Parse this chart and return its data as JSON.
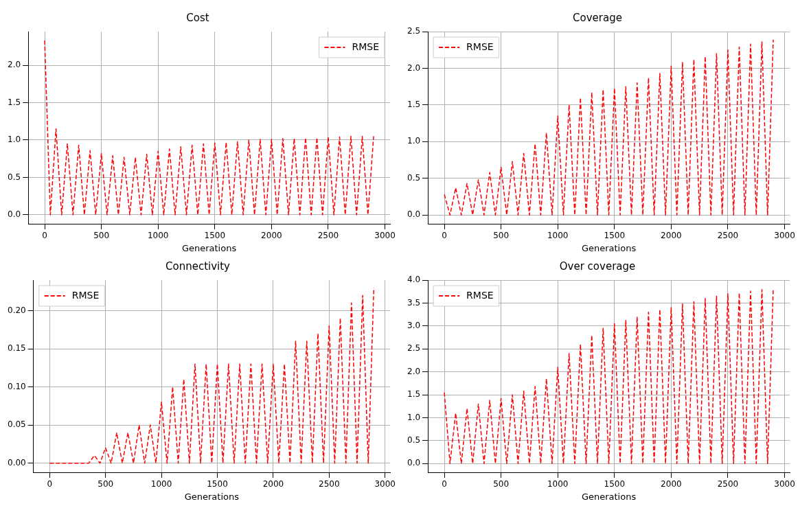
{
  "chart_data": [
    {
      "type": "line",
      "title": "Cost",
      "xlabel": "Generations",
      "legend": "top right",
      "grid": true,
      "marker": "none",
      "line_style": "dashed",
      "x": [
        0,
        50,
        100,
        150,
        200,
        250,
        300,
        350,
        400,
        450,
        500,
        550,
        600,
        650,
        700,
        750,
        800,
        850,
        900,
        950,
        1000,
        1050,
        1100,
        1150,
        1200,
        1250,
        1300,
        1350,
        1400,
        1450,
        1500,
        1550,
        1600,
        1650,
        1700,
        1750,
        1800,
        1850,
        1900,
        1950,
        2000,
        2050,
        2100,
        2150,
        2200,
        2250,
        2300,
        2350,
        2400,
        2450,
        2500,
        2550,
        2600,
        2650,
        2700,
        2750,
        2800,
        2850,
        2900
      ],
      "xlim": [
        -145,
        3045
      ],
      "xticks": [
        0,
        500,
        1000,
        1500,
        2000,
        2500,
        3000
      ],
      "ylim": [
        -0.12,
        2.45
      ],
      "yticks": [
        {
          "value": 0,
          "label": "0.0"
        },
        {
          "value": 0.5,
          "label": "0.5"
        },
        {
          "value": 1,
          "label": "1.0"
        },
        {
          "value": 1.5,
          "label": "1.5"
        },
        {
          "value": 2,
          "label": "2.0"
        }
      ],
      "series": [
        {
          "name": "RMSE",
          "color": "#ff0000",
          "values": [
            2.33,
            0,
            1.15,
            0,
            0.95,
            0,
            0.93,
            0,
            0.86,
            0,
            0.82,
            0,
            0.79,
            0,
            0.77,
            0,
            0.77,
            0,
            0.81,
            0,
            0.85,
            0,
            0.88,
            0,
            0.91,
            0,
            0.93,
            0,
            0.95,
            0,
            0.96,
            0,
            0.97,
            0,
            0.98,
            0,
            1.0,
            0,
            1.01,
            0,
            1.01,
            0,
            1.02,
            0,
            1.02,
            0,
            1.03,
            0,
            1.03,
            0,
            1.04,
            0,
            1.04,
            0,
            1.05,
            0,
            1.05,
            0,
            1.05
          ]
        }
      ]
    },
    {
      "type": "line",
      "title": "Coverage",
      "xlabel": "Generations",
      "legend": "top left",
      "grid": true,
      "marker": "none",
      "line_style": "dashed",
      "x": [
        0,
        50,
        100,
        150,
        200,
        250,
        300,
        350,
        400,
        450,
        500,
        550,
        600,
        650,
        700,
        750,
        800,
        850,
        900,
        950,
        1000,
        1050,
        1100,
        1150,
        1200,
        1250,
        1300,
        1350,
        1400,
        1450,
        1500,
        1550,
        1600,
        1650,
        1700,
        1750,
        1800,
        1850,
        1900,
        1950,
        2000,
        2050,
        2100,
        2150,
        2200,
        2250,
        2300,
        2350,
        2400,
        2450,
        2500,
        2550,
        2600,
        2650,
        2700,
        2750,
        2800,
        2850,
        2900
      ],
      "xlim": [
        -145,
        3045
      ],
      "xticks": [
        0,
        500,
        1000,
        1500,
        2000,
        2500,
        3000
      ],
      "ylim": [
        -0.12,
        2.5
      ],
      "yticks": [
        {
          "value": 0,
          "label": "0.0"
        },
        {
          "value": 0.5,
          "label": "0.5"
        },
        {
          "value": 1,
          "label": "1.0"
        },
        {
          "value": 1.5,
          "label": "1.5"
        },
        {
          "value": 2,
          "label": "2.0"
        },
        {
          "value": 2.5,
          "label": "2.5"
        }
      ],
      "series": [
        {
          "name": "RMSE",
          "color": "#ff0000",
          "values": [
            0.28,
            0,
            0.37,
            0,
            0.43,
            0,
            0.48,
            0,
            0.58,
            0,
            0.65,
            0,
            0.73,
            0,
            0.84,
            0,
            0.97,
            0,
            1.12,
            0,
            1.35,
            0,
            1.5,
            0,
            1.6,
            0,
            1.67,
            0,
            1.71,
            0,
            1.73,
            0,
            1.75,
            0,
            1.8,
            0,
            1.87,
            0,
            1.93,
            0,
            2.03,
            0,
            2.08,
            0,
            2.12,
            0,
            2.16,
            0,
            2.2,
            0,
            2.25,
            0,
            2.29,
            0,
            2.33,
            0,
            2.36,
            0,
            2.39
          ]
        }
      ]
    },
    {
      "type": "line",
      "title": "Connectivity",
      "xlabel": "Generations",
      "legend": "top left",
      "grid": true,
      "marker": "none",
      "line_style": "dashed",
      "x": [
        0,
        50,
        100,
        150,
        200,
        250,
        300,
        350,
        400,
        450,
        500,
        550,
        600,
        650,
        700,
        750,
        800,
        850,
        900,
        950,
        1000,
        1050,
        1100,
        1150,
        1200,
        1250,
        1300,
        1350,
        1400,
        1450,
        1500,
        1550,
        1600,
        1650,
        1700,
        1750,
        1800,
        1850,
        1900,
        1950,
        2000,
        2050,
        2100,
        2150,
        2200,
        2250,
        2300,
        2350,
        2400,
        2450,
        2500,
        2550,
        2600,
        2650,
        2700,
        2750,
        2800,
        2850,
        2900
      ],
      "xlim": [
        -145,
        3045
      ],
      "xticks": [
        0,
        500,
        1000,
        1500,
        2000,
        2500,
        3000
      ],
      "ylim": [
        -0.012,
        0.24
      ],
      "yticks": [
        {
          "value": 0,
          "label": "0.00"
        },
        {
          "value": 0.05,
          "label": "0.05"
        },
        {
          "value": 0.1,
          "label": "0.10"
        },
        {
          "value": 0.15,
          "label": "0.15"
        },
        {
          "value": 0.2,
          "label": "0.20"
        }
      ],
      "series": [
        {
          "name": "RMSE",
          "color": "#ff0000",
          "values": [
            0,
            0,
            0,
            0,
            0,
            0,
            0,
            0,
            0.01,
            0,
            0.02,
            0,
            0.04,
            0,
            0.04,
            0,
            0.05,
            0,
            0.05,
            0,
            0.08,
            0,
            0.1,
            0,
            0.11,
            0,
            0.13,
            0,
            0.13,
            0,
            0.13,
            0,
            0.13,
            0,
            0.13,
            0,
            0.13,
            0,
            0.13,
            0,
            0.13,
            0,
            0.13,
            0,
            0.16,
            0,
            0.16,
            0,
            0.17,
            0,
            0.18,
            0,
            0.19,
            0,
            0.21,
            0,
            0.22,
            0,
            0.23
          ]
        }
      ]
    },
    {
      "type": "line",
      "title": "Over coverage",
      "xlabel": "Generations",
      "legend": "top left",
      "grid": true,
      "marker": "none",
      "line_style": "dashed",
      "x": [
        0,
        50,
        100,
        150,
        200,
        250,
        300,
        350,
        400,
        450,
        500,
        550,
        600,
        650,
        700,
        750,
        800,
        850,
        900,
        950,
        1000,
        1050,
        1100,
        1150,
        1200,
        1250,
        1300,
        1350,
        1400,
        1450,
        1500,
        1550,
        1600,
        1650,
        1700,
        1750,
        1800,
        1850,
        1900,
        1950,
        2000,
        2050,
        2100,
        2150,
        2200,
        2250,
        2300,
        2350,
        2400,
        2450,
        2500,
        2550,
        2600,
        2650,
        2700,
        2750,
        2800,
        2850,
        2900
      ],
      "xlim": [
        -145,
        3045
      ],
      "xticks": [
        0,
        500,
        1000,
        1500,
        2000,
        2500,
        3000
      ],
      "ylim": [
        -0.19,
        4.0
      ],
      "yticks": [
        {
          "value": 0,
          "label": "0.0"
        },
        {
          "value": 0.5,
          "label": "0.5"
        },
        {
          "value": 1,
          "label": "1.0"
        },
        {
          "value": 1.5,
          "label": "1.5"
        },
        {
          "value": 2,
          "label": "2.0"
        },
        {
          "value": 2.5,
          "label": "2.5"
        },
        {
          "value": 3,
          "label": "3.0"
        },
        {
          "value": 3.5,
          "label": "3.5"
        },
        {
          "value": 4,
          "label": "4.0"
        }
      ],
      "series": [
        {
          "name": "RMSE",
          "color": "#ff0000",
          "values": [
            1.55,
            0,
            1.1,
            0,
            1.2,
            0,
            1.3,
            0,
            1.38,
            0,
            1.42,
            0,
            1.5,
            0,
            1.58,
            0,
            1.68,
            0,
            1.85,
            0,
            2.1,
            0,
            2.4,
            0,
            2.6,
            0,
            2.8,
            0,
            2.95,
            0,
            3.05,
            0,
            3.12,
            0,
            3.2,
            0,
            3.3,
            0,
            3.36,
            0,
            3.4,
            0,
            3.48,
            0,
            3.53,
            0,
            3.6,
            0,
            3.65,
            0,
            3.7,
            0,
            3.72,
            0,
            3.76,
            0,
            3.79,
            0,
            3.82
          ]
        }
      ]
    }
  ]
}
